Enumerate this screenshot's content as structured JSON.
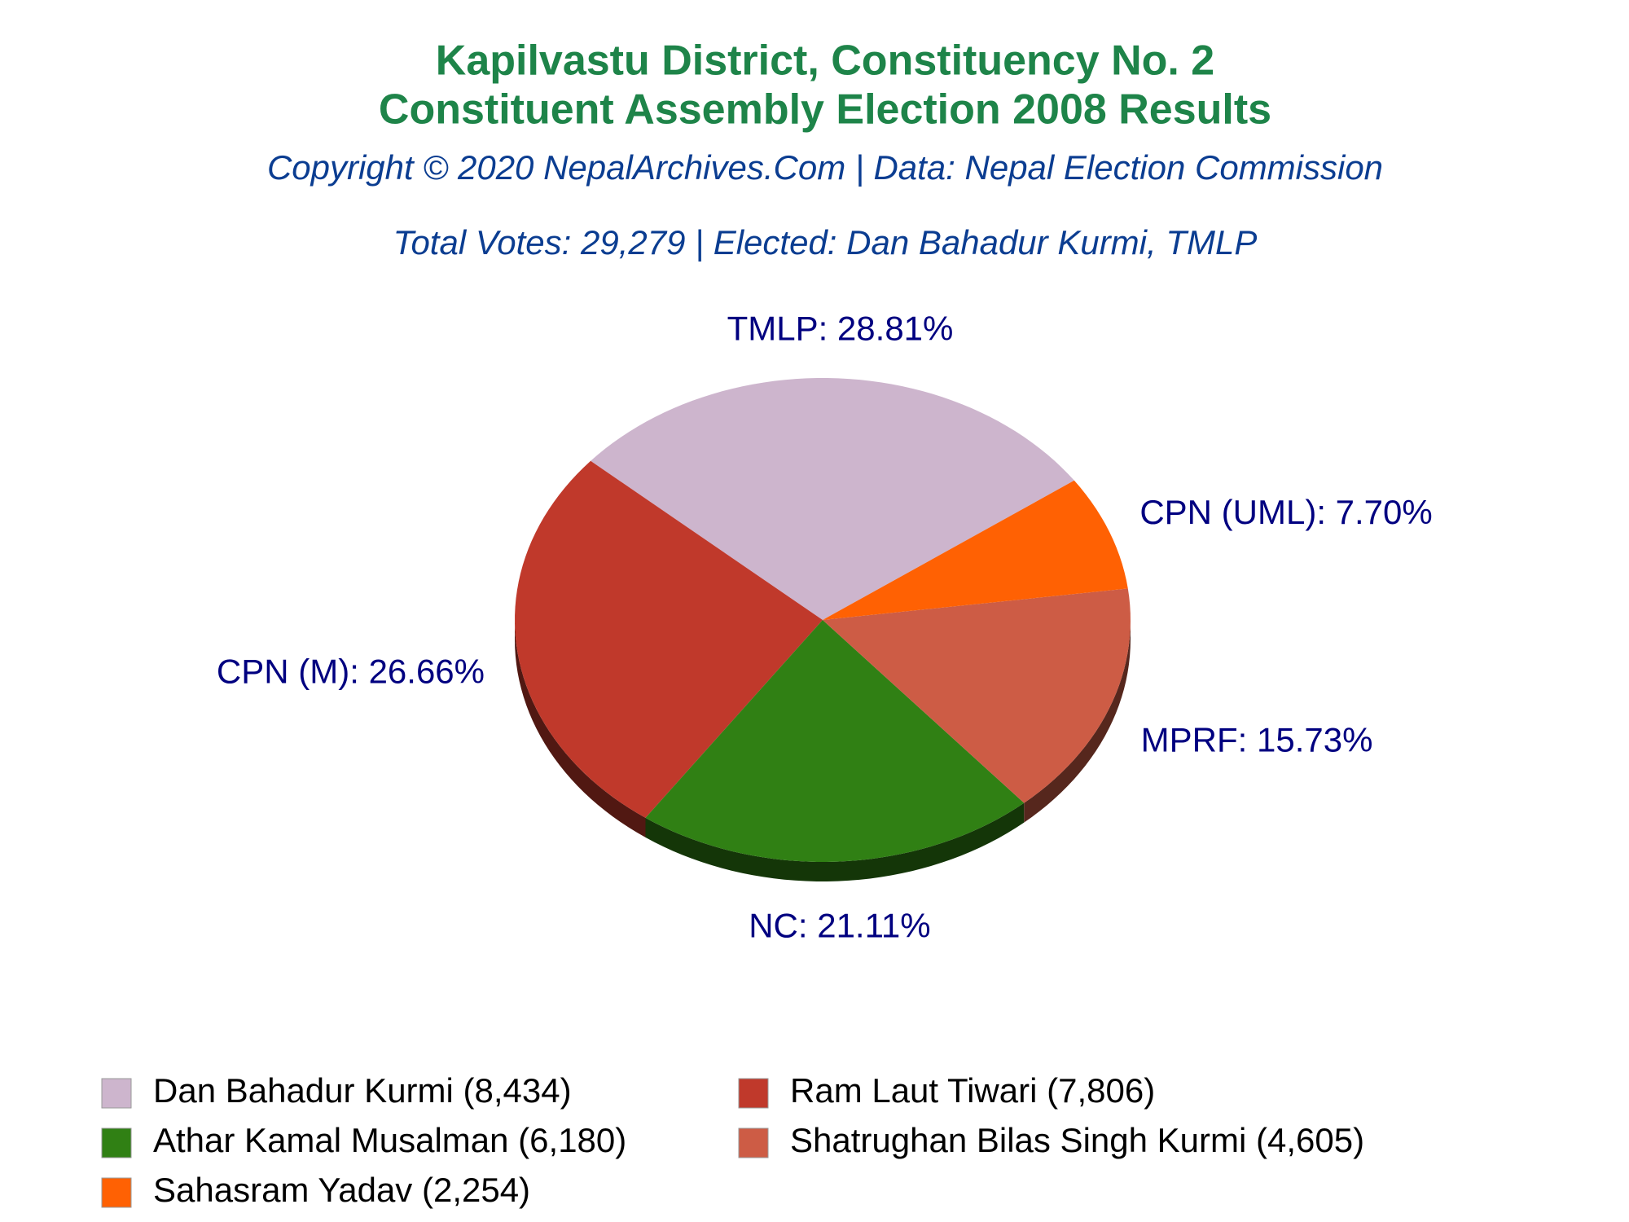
{
  "chart_data": {
    "type": "pie",
    "title_lines": [
      "Kapilvastu District, Constituency No. 2",
      "Constituent Assembly Election 2008 Results"
    ],
    "subtitle": "Copyright © 2020 NepalArchives.Com | Data: Nepal Election Commission",
    "note": "Total Votes: 29,279 | Elected: Dan Bahadur Kurmi, TMLP",
    "categories": [
      "Dan Bahadur Kurmi (8,434)",
      "Ram Laut Tiwari (7,806)",
      "Athar Kamal Musalman (6,180)",
      "Shatrughan Bilas Singh Kurmi (4,605)",
      "Sahasram Yadav (2,254)"
    ],
    "values": [
      28.81,
      26.66,
      21.11,
      15.73,
      7.7
    ],
    "value_labels": [
      "TMLP: 28.81%",
      "CPN (M): 26.66%",
      "NC: 21.11%",
      "MPRF: 15.73%",
      "CPN (UML): 7.70%"
    ],
    "colors": [
      "#cdb5cd",
      "#c0392b",
      "#308014",
      "#cd5c45",
      "#ff6103"
    ]
  }
}
